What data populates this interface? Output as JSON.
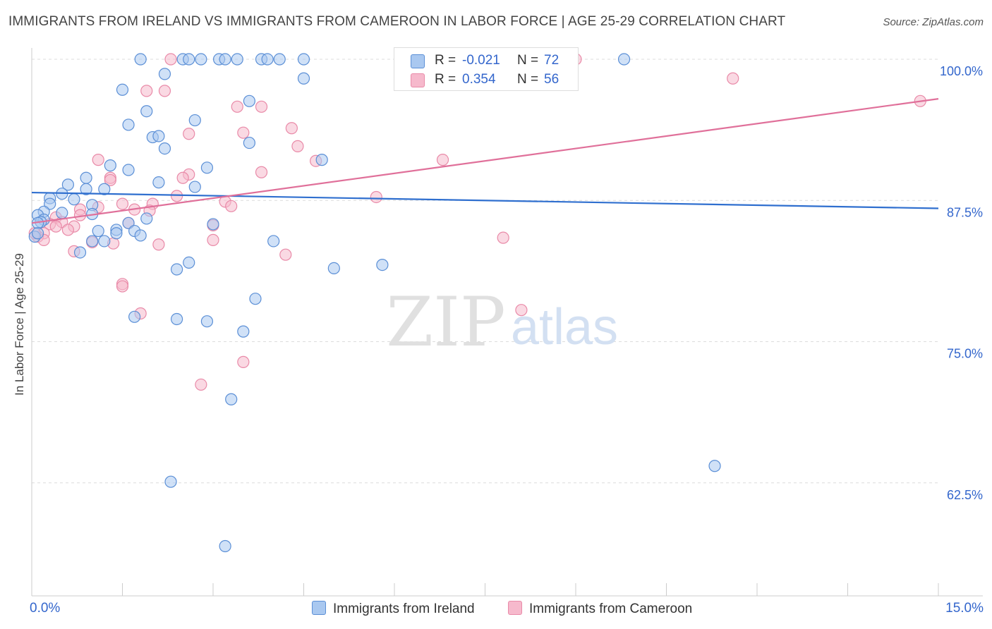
{
  "title": "IMMIGRANTS FROM IRELAND VS IMMIGRANTS FROM CAMEROON IN LABOR FORCE | AGE 25-29 CORRELATION CHART",
  "source": "Source: ZipAtlas.com",
  "watermark": {
    "zip": "ZIP",
    "atlas": "atlas"
  },
  "legend_top": {
    "ireland": {
      "r_label": "R = ",
      "r_value": "-0.021",
      "n_label": "N = ",
      "n_value": "72"
    },
    "cameroon": {
      "r_label": "R = ",
      "r_value": "0.354",
      "n_label": "N = ",
      "n_value": "56"
    }
  },
  "chart_data": {
    "type": "scatter",
    "title": "IMMIGRANTS FROM IRELAND VS IMMIGRANTS FROM CAMEROON IN LABOR FORCE | AGE 25-29 CORRELATION CHART",
    "xlabel": "",
    "ylabel": "In Labor Force | Age 25-29",
    "xlim": [
      0,
      15
    ],
    "ylim": [
      52.5,
      101.5
    ],
    "x_tick_labels": [
      "0.0%",
      "15.0%"
    ],
    "y_tick_labels": [
      "100.0%",
      "87.5%",
      "75.0%",
      "62.5%"
    ],
    "y_ticks": [
      100.0,
      87.5,
      75.0,
      62.5
    ],
    "grid": true,
    "colors": {
      "ireland_fill": "#a9c8f0",
      "ireland_stroke": "#5b8fd6",
      "ireland_line": "#2f6fcf",
      "cameroon_fill": "#f6b9cc",
      "cameroon_stroke": "#e98aa8",
      "cameroon_line": "#e0709a"
    },
    "series": [
      {
        "name": "Immigrants from Ireland",
        "trend": {
          "x": [
            0,
            15
          ],
          "y": [
            88.2,
            86.8
          ]
        },
        "points": [
          [
            1.8,
            100
          ],
          [
            2.5,
            100
          ],
          [
            2.6,
            100
          ],
          [
            2.8,
            100
          ],
          [
            3.1,
            100
          ],
          [
            3.2,
            100
          ],
          [
            3.4,
            100
          ],
          [
            3.8,
            100
          ],
          [
            3.9,
            100
          ],
          [
            4.1,
            100
          ],
          [
            4.5,
            100
          ],
          [
            9.8,
            100
          ],
          [
            2.2,
            98.7
          ],
          [
            4.5,
            98.3
          ],
          [
            1.5,
            97.3
          ],
          [
            3.6,
            96.3
          ],
          [
            1.9,
            95.4
          ],
          [
            2.7,
            94.6
          ],
          [
            1.6,
            94.2
          ],
          [
            2.0,
            93.1
          ],
          [
            2.1,
            93.2
          ],
          [
            3.6,
            92.6
          ],
          [
            2.2,
            92.1
          ],
          [
            4.8,
            91.1
          ],
          [
            1.3,
            90.6
          ],
          [
            1.6,
            90.2
          ],
          [
            2.9,
            90.4
          ],
          [
            0.9,
            89.5
          ],
          [
            2.1,
            89.1
          ],
          [
            0.6,
            88.9
          ],
          [
            0.9,
            88.5
          ],
          [
            1.2,
            88.5
          ],
          [
            2.7,
            88.7
          ],
          [
            0.5,
            88.1
          ],
          [
            0.3,
            87.7
          ],
          [
            0.7,
            87.6
          ],
          [
            0.3,
            87.2
          ],
          [
            1.0,
            87.1
          ],
          [
            0.2,
            86.5
          ],
          [
            0.5,
            86.4
          ],
          [
            1.0,
            86.3
          ],
          [
            0.1,
            86.2
          ],
          [
            0.2,
            85.8
          ],
          [
            0.15,
            85.6
          ],
          [
            0.1,
            85.5
          ],
          [
            1.9,
            85.9
          ],
          [
            1.6,
            85.5
          ],
          [
            3.0,
            85.4
          ],
          [
            1.1,
            84.8
          ],
          [
            1.7,
            84.8
          ],
          [
            1.4,
            84.9
          ],
          [
            1.4,
            84.6
          ],
          [
            1.8,
            84.4
          ],
          [
            1.0,
            83.9
          ],
          [
            1.2,
            83.9
          ],
          [
            4.0,
            83.9
          ],
          [
            0.8,
            82.9
          ],
          [
            2.6,
            82.0
          ],
          [
            5.8,
            81.8
          ],
          [
            2.4,
            81.4
          ],
          [
            5.0,
            81.5
          ],
          [
            3.7,
            78.8
          ],
          [
            1.7,
            77.2
          ],
          [
            2.4,
            77.0
          ],
          [
            2.9,
            76.8
          ],
          [
            3.5,
            75.9
          ],
          [
            3.3,
            69.9
          ],
          [
            11.3,
            64.0
          ],
          [
            2.3,
            62.6
          ],
          [
            3.2,
            56.9
          ],
          [
            0.05,
            84.3
          ],
          [
            0.1,
            84.6
          ]
        ]
      },
      {
        "name": "Immigrants from Cameroon",
        "trend": {
          "x": [
            0,
            15
          ],
          "y": [
            85.5,
            96.5
          ]
        },
        "points": [
          [
            2.3,
            100
          ],
          [
            9.0,
            100
          ],
          [
            11.6,
            98.3
          ],
          [
            14.7,
            96.3
          ],
          [
            1.9,
            97.2
          ],
          [
            2.2,
            97.2
          ],
          [
            3.4,
            95.8
          ],
          [
            3.8,
            95.8
          ],
          [
            2.6,
            93.4
          ],
          [
            3.5,
            93.5
          ],
          [
            4.3,
            93.9
          ],
          [
            4.4,
            92.3
          ],
          [
            1.1,
            91.1
          ],
          [
            4.7,
            91.0
          ],
          [
            6.8,
            91.1
          ],
          [
            3.8,
            90.0
          ],
          [
            2.6,
            89.8
          ],
          [
            2.5,
            89.5
          ],
          [
            1.3,
            89.5
          ],
          [
            1.3,
            89.3
          ],
          [
            2.4,
            87.9
          ],
          [
            5.7,
            87.8
          ],
          [
            3.2,
            87.4
          ],
          [
            3.3,
            87.0
          ],
          [
            1.5,
            87.2
          ],
          [
            1.1,
            86.9
          ],
          [
            2.0,
            87.2
          ],
          [
            1.7,
            86.7
          ],
          [
            1.95,
            86.6
          ],
          [
            0.8,
            86.7
          ],
          [
            0.8,
            86.2
          ],
          [
            0.4,
            86.0
          ],
          [
            0.5,
            85.6
          ],
          [
            0.3,
            85.4
          ],
          [
            0.4,
            85.2
          ],
          [
            0.7,
            85.2
          ],
          [
            1.6,
            85.5
          ],
          [
            3.0,
            85.3
          ],
          [
            0.6,
            84.9
          ],
          [
            0.2,
            84.6
          ],
          [
            0.1,
            84.3
          ],
          [
            0.2,
            84.0
          ],
          [
            3.0,
            84.0
          ],
          [
            1.0,
            83.8
          ],
          [
            1.35,
            83.7
          ],
          [
            2.1,
            83.6
          ],
          [
            0.7,
            83.0
          ],
          [
            4.2,
            82.7
          ],
          [
            1.5,
            80.1
          ],
          [
            1.5,
            79.9
          ],
          [
            1.8,
            77.5
          ],
          [
            8.1,
            77.8
          ],
          [
            7.8,
            84.2
          ],
          [
            3.5,
            73.2
          ],
          [
            2.8,
            71.2
          ],
          [
            0.05,
            84.6
          ]
        ]
      }
    ]
  },
  "legend_bottom": {
    "ireland": "Immigrants from Ireland",
    "cameroon": "Immigrants from Cameroon"
  }
}
